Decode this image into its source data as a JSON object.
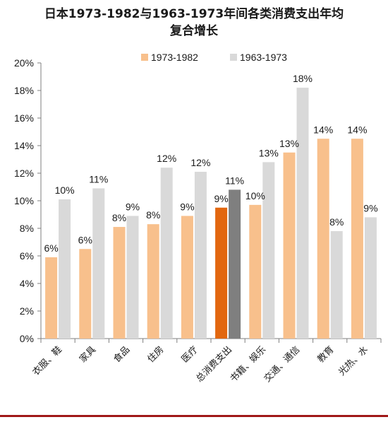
{
  "chart_data": {
    "type": "bar",
    "title_line1": "日本1973-1982与1963-1973年间各类消费支出年均",
    "title_line2": "复合增长",
    "categories": [
      "衣服、鞋",
      "家具",
      "食品",
      "住房",
      "医疗",
      "总消费支出",
      "书籍、娱乐",
      "交通、通信",
      "教育",
      "光热、水"
    ],
    "series": [
      {
        "name": "1973-1982",
        "values": [
          6,
          6,
          8,
          8,
          9,
          9,
          10,
          13,
          14,
          14
        ],
        "exact": [
          5.9,
          6.5,
          8.1,
          8.3,
          8.9,
          9.5,
          9.7,
          13.5,
          14.5,
          14.5
        ]
      },
      {
        "name": "1963-1973",
        "values": [
          10,
          11,
          9,
          12,
          12,
          11,
          13,
          18,
          8,
          9
        ],
        "exact": [
          10.1,
          10.9,
          8.9,
          12.4,
          12.1,
          10.8,
          12.8,
          18.2,
          7.8,
          8.8
        ]
      }
    ],
    "y_ticks": [
      "0%",
      "2%",
      "4%",
      "6%",
      "8%",
      "10%",
      "12%",
      "14%",
      "16%",
      "18%",
      "20%"
    ],
    "ylim": [
      0,
      20
    ],
    "legend_position": "top",
    "grid": false,
    "colors": {
      "series1": "#f8c08c",
      "series2": "#d9d9d9",
      "highlight1": "#e2670f",
      "highlight2": "#7f7f7f",
      "rule": "#a01818"
    },
    "highlight_category_index": 5
  }
}
